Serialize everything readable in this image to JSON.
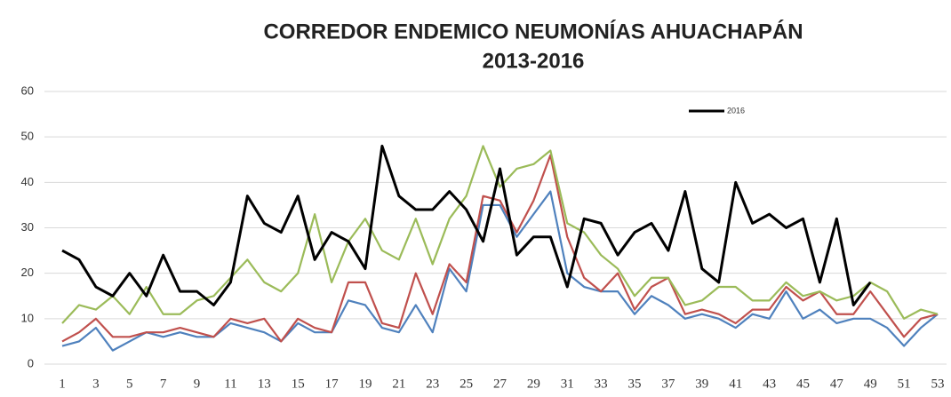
{
  "chart_data": {
    "type": "line",
    "title": [
      "CORREDOR ENDEMICO NEUMONÍAS AHUACHAPÁN",
      "2013-2016"
    ],
    "categories": [
      1,
      null,
      3,
      null,
      5,
      null,
      7,
      null,
      9,
      null,
      11,
      null,
      13,
      null,
      15,
      null,
      17,
      null,
      19,
      null,
      21,
      null,
      23,
      null,
      25,
      null,
      27,
      null,
      29,
      null,
      31,
      null,
      33,
      null,
      35,
      null,
      37,
      null,
      39,
      null,
      41,
      null,
      43,
      null,
      45,
      null,
      47,
      null,
      49,
      null,
      51,
      null,
      53
    ],
    "ylim": [
      0,
      60
    ],
    "yticks": [
      0,
      10,
      20,
      30,
      40,
      50,
      60
    ],
    "grid": true,
    "legend": "top-right",
    "series": [
      {
        "color": "#4f81bd",
        "values": [
          4,
          5,
          8,
          3,
          5,
          7,
          6,
          7,
          6,
          6,
          9,
          8,
          7,
          5,
          9,
          7,
          7,
          14,
          13,
          8,
          7,
          13,
          7,
          21,
          16,
          35,
          35,
          28,
          33,
          38,
          20,
          17,
          16,
          16,
          11,
          15,
          13,
          10,
          11,
          10,
          8,
          11,
          10,
          16,
          10,
          12,
          9,
          10,
          10,
          8,
          4,
          8,
          11
        ]
      },
      {
        "color": "#c0504d",
        "values": [
          5,
          7,
          10,
          6,
          6,
          7,
          7,
          8,
          7,
          6,
          10,
          9,
          10,
          5,
          10,
          8,
          7,
          18,
          18,
          9,
          8,
          20,
          11,
          22,
          18,
          37,
          36,
          29,
          36,
          46,
          28,
          19,
          16,
          20,
          12,
          17,
          19,
          11,
          12,
          11,
          9,
          12,
          12,
          17,
          14,
          16,
          11,
          11,
          16,
          11,
          6,
          10,
          11
        ]
      },
      {
        "color": "#9bbb59",
        "values": [
          9,
          13,
          12,
          15,
          11,
          17,
          11,
          11,
          14,
          15,
          19,
          23,
          18,
          16,
          20,
          33,
          18,
          27,
          32,
          25,
          23,
          32,
          22,
          32,
          37,
          48,
          39,
          43,
          44,
          47,
          31,
          29,
          24,
          21,
          15,
          19,
          19,
          13,
          14,
          17,
          17,
          14,
          14,
          18,
          15,
          16,
          14,
          15,
          18,
          16,
          10,
          12,
          11
        ]
      },
      {
        "name": "2016",
        "color": "#000000",
        "values": [
          25,
          23,
          17,
          15,
          20,
          15,
          24,
          16,
          16,
          13,
          18,
          37,
          31,
          29,
          37,
          23,
          29,
          27,
          21,
          48,
          37,
          34,
          34,
          38,
          34,
          27,
          43,
          24,
          28,
          28,
          17,
          32,
          31,
          24,
          29,
          31,
          25,
          38,
          21,
          18,
          40,
          31,
          33,
          30,
          32,
          18,
          32,
          13,
          18,
          null,
          null,
          null,
          null
        ]
      }
    ]
  }
}
